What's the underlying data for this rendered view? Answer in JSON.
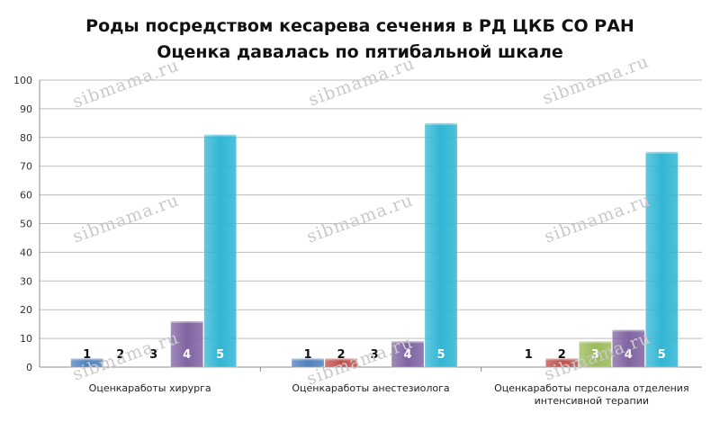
{
  "chart_data": {
    "type": "bar",
    "title": "Роды посредством кесарева сечения в РД ЦКБ СО РАН",
    "subtitle": "Оценка давалась по пятибальной шкале",
    "categories": [
      "Оценкаработы хирурга",
      "Оценкаработы анестезиолога",
      "Оценкаработы персонала отделения интенсивной терапии"
    ],
    "category_lines": [
      [
        "Оценкаработы хирурга"
      ],
      [
        "Оценкаработы анестезиолога"
      ],
      [
        "Оценкаработы персонала отделения",
        "интенсивной терапии"
      ]
    ],
    "series": [
      {
        "name": "1",
        "values": [
          3,
          3,
          0
        ],
        "color": "#4f81bd"
      },
      {
        "name": "2",
        "values": [
          0,
          3,
          3
        ],
        "color": "#c0504d"
      },
      {
        "name": "3",
        "values": [
          0,
          0,
          9
        ],
        "color": "#9bbb59"
      },
      {
        "name": "4",
        "values": [
          16,
          9,
          13
        ],
        "color": "#8064a2"
      },
      {
        "name": "5",
        "values": [
          81,
          85,
          75
        ],
        "color": "#31b6d4"
      }
    ],
    "ylim": [
      0,
      100
    ],
    "yticks": [
      "0",
      "10",
      "20",
      "30",
      "40",
      "50",
      "60",
      "70",
      "80",
      "90",
      "100"
    ],
    "grid": true,
    "legend": "none"
  },
  "watermark": "sibmama.ru"
}
